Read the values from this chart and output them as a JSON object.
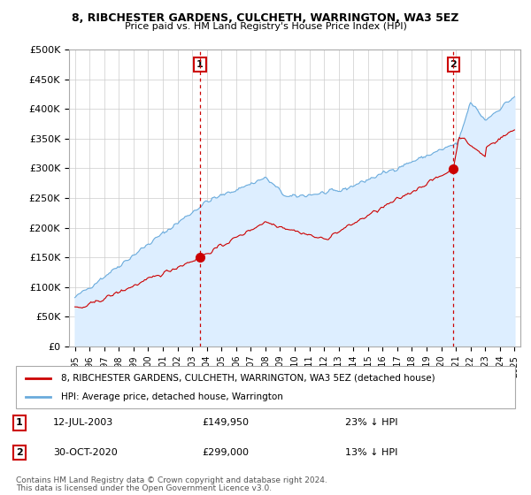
{
  "title1": "8, RIBCHESTER GARDENS, CULCHETH, WARRINGTON, WA3 5EZ",
  "title2": "Price paid vs. HM Land Registry's House Price Index (HPI)",
  "ylabel_ticks": [
    "£0",
    "£50K",
    "£100K",
    "£150K",
    "£200K",
    "£250K",
    "£300K",
    "£350K",
    "£400K",
    "£450K",
    "£500K"
  ],
  "ytick_values": [
    0,
    50000,
    100000,
    150000,
    200000,
    250000,
    300000,
    350000,
    400000,
    450000,
    500000
  ],
  "purchase1_date": "12-JUL-2003",
  "purchase1_price": 149950,
  "purchase1_label": "23% ↓ HPI",
  "purchase1_year": 2003.53,
  "purchase2_date": "30-OCT-2020",
  "purchase2_price": 299000,
  "purchase2_label": "13% ↓ HPI",
  "purchase2_year": 2020.83,
  "legend_line1": "8, RIBCHESTER GARDENS, CULCHETH, WARRINGTON, WA3 5EZ (detached house)",
  "legend_line2": "HPI: Average price, detached house, Warrington",
  "footnote1": "Contains HM Land Registry data © Crown copyright and database right 2024.",
  "footnote2": "This data is licensed under the Open Government Licence v3.0.",
  "hpi_color": "#6aabdc",
  "hpi_fill_color": "#ddeeff",
  "price_color": "#cc0000",
  "vline_color": "#cc0000",
  "background_color": "#ffffff",
  "grid_color": "#cccccc"
}
